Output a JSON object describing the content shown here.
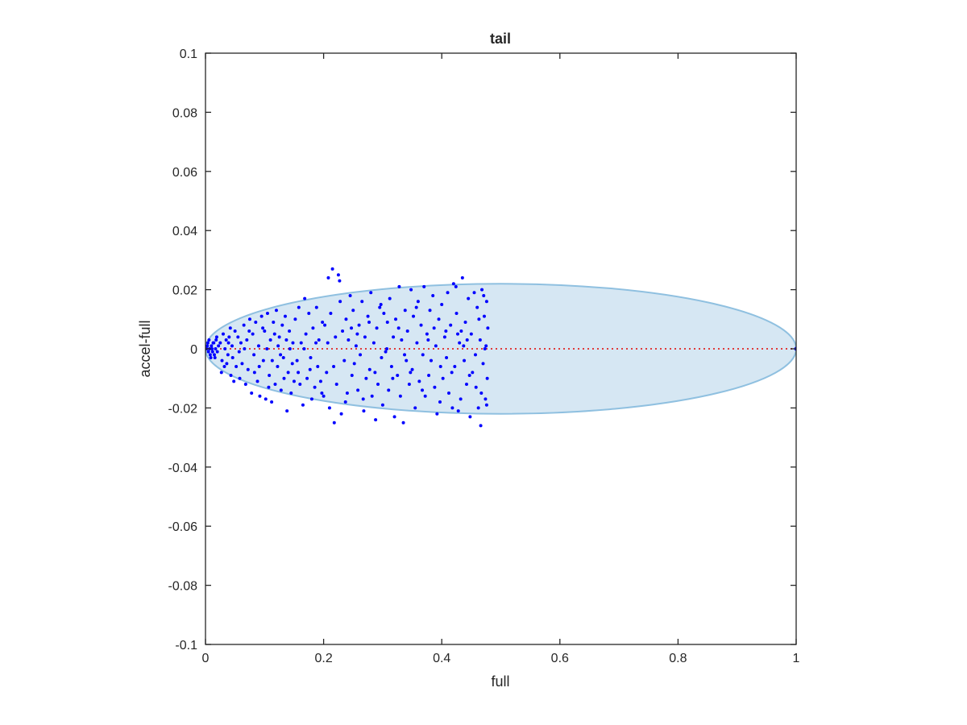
{
  "chart_data": {
    "type": "scatter",
    "title": "tail",
    "xlabel": "full",
    "ylabel": "accel-full",
    "xlim": [
      0,
      1
    ],
    "ylim": [
      -0.1,
      0.1
    ],
    "xticks": [
      0,
      0.2,
      0.4,
      0.6,
      0.8,
      1
    ],
    "xtick_labels": [
      "0",
      "0.2",
      "0.4",
      "0.6",
      "0.8",
      "1"
    ],
    "yticks": [
      -0.1,
      -0.08,
      -0.06,
      -0.04,
      -0.02,
      0,
      0.02,
      0.04,
      0.06,
      0.08,
      0.1
    ],
    "ytick_labels": [
      "-0.1",
      "-0.08",
      "-0.06",
      "-0.04",
      "-0.02",
      "0",
      "0.02",
      "0.04",
      "0.06",
      "0.08",
      "0.1"
    ],
    "grid": false,
    "box": true,
    "ellipse": {
      "center": [
        0.5,
        0
      ],
      "semi_axes": [
        0.5,
        0.022
      ],
      "fill_color": "#d6e7f3",
      "edge_color": "#8fc0e0"
    },
    "reference_line": {
      "x": [
        0,
        1
      ],
      "y": [
        0,
        0
      ],
      "style": "dotted",
      "color": "#e03b3b"
    },
    "series_color": "#0000ff",
    "endpoint": [
      1,
      0
    ],
    "series": [
      {
        "points": [
          [
            0.003,
            0.001
          ],
          [
            0.005,
            -0.001
          ],
          [
            0.004,
            0.002
          ],
          [
            0.007,
            0.0
          ],
          [
            0.008,
            -0.002
          ],
          [
            0.01,
            0.001
          ],
          [
            0.012,
            -0.001
          ],
          [
            0.006,
            0.003
          ],
          [
            0.009,
            -0.003
          ],
          [
            0.014,
            0.002
          ],
          [
            0.015,
            -0.002
          ],
          [
            0.018,
            0.003
          ],
          [
            0.02,
            -0.001
          ],
          [
            0.017,
            0.0
          ],
          [
            0.022,
            0.001
          ],
          [
            0.011,
            0.0
          ],
          [
            0.013,
            0.002
          ],
          [
            0.016,
            -0.003
          ],
          [
            0.002,
            0.0
          ],
          [
            0.019,
            0.004
          ],
          [
            0.025,
            0.002
          ],
          [
            0.028,
            -0.004
          ],
          [
            0.03,
            0.005
          ],
          [
            0.032,
            -0.006
          ],
          [
            0.035,
            0.003
          ],
          [
            0.038,
            -0.002
          ],
          [
            0.04,
            0.004
          ],
          [
            0.027,
            -0.008
          ],
          [
            0.043,
            -0.009
          ],
          [
            0.045,
            0.001
          ],
          [
            0.048,
            -0.011
          ],
          [
            0.05,
            0.006
          ],
          [
            0.042,
            0.007
          ],
          [
            0.036,
            -0.005
          ],
          [
            0.046,
            -0.003
          ],
          [
            0.033,
            0.0
          ],
          [
            0.052,
            -0.006
          ],
          [
            0.039,
            0.002
          ],
          [
            0.055,
            0.004
          ],
          [
            0.058,
            -0.01
          ],
          [
            0.06,
            0.002
          ],
          [
            0.062,
            -0.005
          ],
          [
            0.065,
            0.008
          ],
          [
            0.068,
            -0.012
          ],
          [
            0.07,
            0.003
          ],
          [
            0.072,
            -0.007
          ],
          [
            0.075,
            0.01
          ],
          [
            0.078,
            -0.015
          ],
          [
            0.08,
            0.005
          ],
          [
            0.082,
            -0.002
          ],
          [
            0.085,
            0.009
          ],
          [
            0.088,
            -0.011
          ],
          [
            0.09,
            0.001
          ],
          [
            0.092,
            -0.016
          ],
          [
            0.095,
            0.011
          ],
          [
            0.098,
            -0.004
          ],
          [
            0.057,
            -0.001
          ],
          [
            0.066,
            0.0
          ],
          [
            0.074,
            0.006
          ],
          [
            0.083,
            -0.008
          ],
          [
            0.091,
            -0.006
          ],
          [
            0.097,
            0.007
          ],
          [
            0.1,
            0.006
          ],
          [
            0.102,
            -0.017
          ],
          [
            0.105,
            0.012
          ],
          [
            0.108,
            -0.009
          ],
          [
            0.11,
            0.003
          ],
          [
            0.112,
            -0.018
          ],
          [
            0.115,
            0.009
          ],
          [
            0.118,
            -0.012
          ],
          [
            0.12,
            0.013
          ],
          [
            0.122,
            -0.006
          ],
          [
            0.125,
            0.004
          ],
          [
            0.128,
            -0.014
          ],
          [
            0.13,
            0.008
          ],
          [
            0.132,
            -0.003
          ],
          [
            0.135,
            0.011
          ],
          [
            0.138,
            -0.021
          ],
          [
            0.14,
            -0.008
          ],
          [
            0.142,
            0.006
          ],
          [
            0.145,
            -0.015
          ],
          [
            0.148,
            0.002
          ],
          [
            0.15,
            -0.011
          ],
          [
            0.104,
            0.0
          ],
          [
            0.113,
            -0.004
          ],
          [
            0.123,
            0.001
          ],
          [
            0.133,
            -0.01
          ],
          [
            0.143,
            0.0
          ],
          [
            0.107,
            -0.013
          ],
          [
            0.117,
            0.005
          ],
          [
            0.127,
            -0.002
          ],
          [
            0.137,
            0.003
          ],
          [
            0.147,
            -0.005
          ],
          [
            0.152,
            0.01
          ],
          [
            0.155,
            -0.004
          ],
          [
            0.158,
            0.014
          ],
          [
            0.16,
            -0.012
          ],
          [
            0.162,
            0.002
          ],
          [
            0.165,
            -0.019
          ],
          [
            0.168,
            0.017
          ],
          [
            0.17,
            0.005
          ],
          [
            0.172,
            -0.01
          ],
          [
            0.175,
            0.012
          ],
          [
            0.178,
            -0.003
          ],
          [
            0.18,
            -0.017
          ],
          [
            0.182,
            0.007
          ],
          [
            0.185,
            -0.013
          ],
          [
            0.188,
            0.014
          ],
          [
            0.19,
            -0.006
          ],
          [
            0.192,
            0.003
          ],
          [
            0.195,
            -0.011
          ],
          [
            0.198,
            0.009
          ],
          [
            0.157,
            -0.008
          ],
          [
            0.167,
            0.0
          ],
          [
            0.177,
            -0.007
          ],
          [
            0.187,
            0.002
          ],
          [
            0.197,
            -0.015
          ],
          [
            0.2,
            -0.016
          ],
          [
            0.202,
            0.008
          ],
          [
            0.205,
            -0.008
          ],
          [
            0.208,
            0.024
          ],
          [
            0.21,
            -0.02
          ],
          [
            0.212,
            0.012
          ],
          [
            0.215,
            0.027
          ],
          [
            0.218,
            -0.025
          ],
          [
            0.22,
            0.004
          ],
          [
            0.222,
            -0.012
          ],
          [
            0.225,
            0.025
          ],
          [
            0.228,
            0.016
          ],
          [
            0.23,
            -0.022
          ],
          [
            0.232,
            0.006
          ],
          [
            0.235,
            -0.004
          ],
          [
            0.238,
            0.01
          ],
          [
            0.24,
            -0.015
          ],
          [
            0.242,
            0.003
          ],
          [
            0.245,
            0.018
          ],
          [
            0.248,
            -0.009
          ],
          [
            0.227,
            0.023
          ],
          [
            0.207,
            0.002
          ],
          [
            0.217,
            -0.006
          ],
          [
            0.237,
            -0.018
          ],
          [
            0.247,
            0.007
          ],
          [
            0.25,
            0.013
          ],
          [
            0.252,
            -0.005
          ],
          [
            0.255,
            0.001
          ],
          [
            0.258,
            -0.014
          ],
          [
            0.26,
            0.008
          ],
          [
            0.262,
            -0.002
          ],
          [
            0.265,
            0.016
          ],
          [
            0.268,
            -0.021
          ],
          [
            0.27,
            0.004
          ],
          [
            0.272,
            -0.01
          ],
          [
            0.275,
            0.011
          ],
          [
            0.278,
            -0.007
          ],
          [
            0.28,
            0.019
          ],
          [
            0.282,
            -0.016
          ],
          [
            0.285,
            0.002
          ],
          [
            0.288,
            -0.024
          ],
          [
            0.29,
            0.007
          ],
          [
            0.292,
            -0.012
          ],
          [
            0.295,
            0.014
          ],
          [
            0.298,
            -0.003
          ],
          [
            0.257,
            0.005
          ],
          [
            0.267,
            -0.017
          ],
          [
            0.277,
            0.009
          ],
          [
            0.287,
            -0.008
          ],
          [
            0.297,
            0.015
          ],
          [
            0.3,
            -0.019
          ],
          [
            0.302,
            0.012
          ],
          [
            0.305,
            -0.001
          ],
          [
            0.308,
            0.009
          ],
          [
            0.31,
            -0.014
          ],
          [
            0.312,
            0.017
          ],
          [
            0.315,
            -0.006
          ],
          [
            0.318,
            0.004
          ],
          [
            0.32,
            -0.023
          ],
          [
            0.322,
            0.01
          ],
          [
            0.325,
            -0.009
          ],
          [
            0.328,
            0.021
          ],
          [
            0.33,
            -0.016
          ],
          [
            0.332,
            0.003
          ],
          [
            0.335,
            -0.025
          ],
          [
            0.338,
            0.013
          ],
          [
            0.34,
            -0.004
          ],
          [
            0.342,
            0.006
          ],
          [
            0.345,
            -0.012
          ],
          [
            0.348,
            0.02
          ],
          [
            0.307,
            0.0
          ],
          [
            0.317,
            -0.01
          ],
          [
            0.327,
            0.007
          ],
          [
            0.337,
            -0.002
          ],
          [
            0.347,
            -0.008
          ],
          [
            0.35,
            -0.007
          ],
          [
            0.352,
            0.011
          ],
          [
            0.355,
            -0.02
          ],
          [
            0.358,
            0.002
          ],
          [
            0.36,
            0.016
          ],
          [
            0.362,
            -0.011
          ],
          [
            0.365,
            0.008
          ],
          [
            0.368,
            -0.002
          ],
          [
            0.37,
            0.021
          ],
          [
            0.372,
            -0.016
          ],
          [
            0.375,
            0.005
          ],
          [
            0.378,
            -0.009
          ],
          [
            0.38,
            0.013
          ],
          [
            0.382,
            -0.004
          ],
          [
            0.385,
            0.018
          ],
          [
            0.388,
            -0.013
          ],
          [
            0.39,
            0.001
          ],
          [
            0.392,
            -0.022
          ],
          [
            0.395,
            0.01
          ],
          [
            0.398,
            -0.006
          ],
          [
            0.357,
            0.014
          ],
          [
            0.367,
            -0.014
          ],
          [
            0.377,
            0.003
          ],
          [
            0.387,
            0.007
          ],
          [
            0.397,
            -0.018
          ],
          [
            0.4,
            0.015
          ],
          [
            0.402,
            -0.01
          ],
          [
            0.405,
            0.004
          ],
          [
            0.408,
            -0.003
          ],
          [
            0.41,
            0.019
          ],
          [
            0.412,
            -0.015
          ],
          [
            0.415,
            0.008
          ],
          [
            0.418,
            -0.02
          ],
          [
            0.42,
            0.022
          ],
          [
            0.422,
            -0.006
          ],
          [
            0.425,
            0.012
          ],
          [
            0.428,
            -0.021
          ],
          [
            0.43,
            0.002
          ],
          [
            0.432,
            -0.017
          ],
          [
            0.435,
            0.024
          ],
          [
            0.438,
            -0.004
          ],
          [
            0.44,
            0.009
          ],
          [
            0.442,
            -0.012
          ],
          [
            0.445,
            0.017
          ],
          [
            0.448,
            -0.023
          ],
          [
            0.407,
            0.006
          ],
          [
            0.417,
            -0.008
          ],
          [
            0.427,
            0.005
          ],
          [
            0.437,
            0.001
          ],
          [
            0.447,
            -0.009
          ],
          [
            0.424,
            0.021
          ],
          [
            0.433,
            0.006
          ],
          [
            0.443,
            0.003
          ],
          [
            0.45,
            0.005
          ],
          [
            0.452,
            -0.008
          ],
          [
            0.455,
            0.019
          ],
          [
            0.458,
            -0.013
          ],
          [
            0.46,
            0.014
          ],
          [
            0.462,
            -0.02
          ],
          [
            0.465,
            0.003
          ],
          [
            0.466,
            -0.026
          ],
          [
            0.468,
            0.02
          ],
          [
            0.47,
            -0.005
          ],
          [
            0.472,
            0.011
          ],
          [
            0.474,
            -0.017
          ],
          [
            0.475,
            0.001
          ],
          [
            0.476,
            0.016
          ],
          [
            0.477,
            -0.01
          ],
          [
            0.478,
            0.007
          ],
          [
            0.457,
            -0.002
          ],
          [
            0.463,
            0.01
          ],
          [
            0.467,
            -0.015
          ],
          [
            0.473,
            0.0
          ],
          [
            0.471,
            0.018
          ],
          [
            0.476,
            -0.019
          ]
        ]
      }
    ]
  }
}
